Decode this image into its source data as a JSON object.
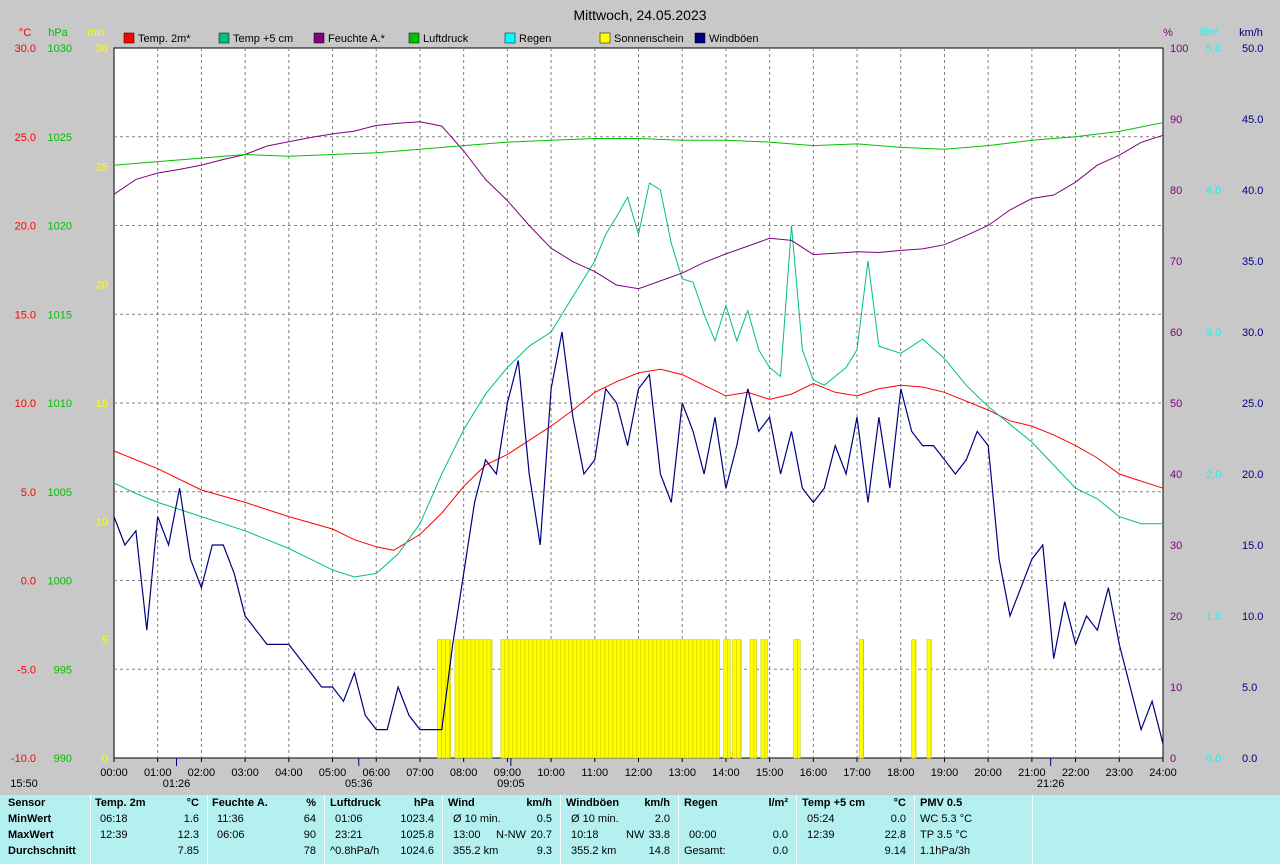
{
  "chart_data": {
    "type": "line",
    "title": "Mittwoch, 24.05.2023",
    "x_ticks": [
      "00:00",
      "01:00",
      "02:00",
      "03:00",
      "04:00",
      "05:00",
      "06:00",
      "07:00",
      "08:00",
      "09:00",
      "10:00",
      "11:00",
      "12:00",
      "13:00",
      "14:00",
      "15:00",
      "16:00",
      "17:00",
      "18:00",
      "19:00",
      "20:00",
      "21:00",
      "22:00",
      "23:00",
      "24:00"
    ],
    "axes": {
      "temp": {
        "unit": "°C",
        "min": -10,
        "max": 30,
        "ticks": [
          "30.0",
          "25.0",
          "20.0",
          "15.0",
          "10.0",
          "5.0",
          "0.0",
          "-5.0",
          "-10.0"
        ],
        "color": "#ff0000"
      },
      "pressure": {
        "unit": "hPa",
        "min": 990,
        "max": 1030,
        "ticks": [
          "1030",
          "1025",
          "1020",
          "1015",
          "1010",
          "1005",
          "1000",
          "995",
          "990"
        ],
        "color": "#00c000"
      },
      "sunshine": {
        "unit": "min",
        "min": 0,
        "max": 30,
        "ticks": [
          "30",
          "25",
          "20",
          "15",
          "10",
          "5",
          "0"
        ],
        "color": "#ffff00"
      },
      "humidity": {
        "unit": "%",
        "min": 0,
        "max": 100,
        "ticks": [
          "100",
          "90",
          "80",
          "70",
          "60",
          "50",
          "40",
          "30",
          "20",
          "10",
          "0"
        ],
        "color": "#800080"
      },
      "rain": {
        "unit": "l/m²",
        "min": 0,
        "max": 5,
        "ticks": [
          "5.0",
          "4.0",
          "3.0",
          "2.0",
          "1.0",
          "0.0"
        ],
        "color": "#00ffff"
      },
      "wind": {
        "unit": "km/h",
        "min": 0,
        "max": 50,
        "ticks": [
          "50.0",
          "45.0",
          "40.0",
          "35.0",
          "30.0",
          "25.0",
          "20.0",
          "15.0",
          "10.0",
          "5.0",
          "0.0"
        ],
        "color": "#000080"
      }
    },
    "legend": [
      {
        "name": "Temp. 2m*",
        "color": "#ff0000"
      },
      {
        "name": "Temp +5 cm",
        "color": "#00c080"
      },
      {
        "name": "Feuchte A.*",
        "color": "#800080"
      },
      {
        "name": "Luftdruck",
        "color": "#00c000"
      },
      {
        "name": "Regen",
        "color": "#00ffff"
      },
      {
        "name": "Sonnenschein",
        "color": "#ffff00"
      },
      {
        "name": "Windböen",
        "color": "#000080"
      }
    ],
    "series": [
      {
        "name": "Temp. 2m*",
        "axis": "temp",
        "color": "#ff0000",
        "x": [
          0,
          1,
          2,
          3,
          4,
          5,
          5.5,
          6,
          6.4,
          7,
          7.5,
          8,
          8.5,
          9,
          9.5,
          10,
          10.5,
          11,
          11.5,
          12,
          12.5,
          13,
          13.5,
          14,
          14.5,
          15,
          15.5,
          16,
          16.5,
          17,
          17.5,
          18,
          18.5,
          19,
          19.5,
          20,
          20.5,
          21,
          21.5,
          22,
          22.5,
          23,
          23.5,
          24
        ],
        "y": [
          7.3,
          6.3,
          5.1,
          4.4,
          3.6,
          2.9,
          2.3,
          1.9,
          1.7,
          2.6,
          3.8,
          5.3,
          6.5,
          7.1,
          7.9,
          8.7,
          9.6,
          10.6,
          11.2,
          11.7,
          11.9,
          11.6,
          11.0,
          10.4,
          10.6,
          10.2,
          10.5,
          11.1,
          10.6,
          10.4,
          10.8,
          11.0,
          10.9,
          10.6,
          10.1,
          9.6,
          9.0,
          8.7,
          8.2,
          7.6,
          6.9,
          6.0,
          5.6,
          5.2
        ]
      },
      {
        "name": "Temp +5 cm",
        "axis": "temp",
        "color": "#00c080",
        "x": [
          0,
          0.5,
          1,
          1.5,
          2,
          2.5,
          3,
          3.5,
          4,
          4.5,
          5,
          5.5,
          6,
          6.5,
          7,
          7.5,
          8,
          8.5,
          9,
          9.5,
          10,
          10.5,
          11,
          11.25,
          11.5,
          11.75,
          12,
          12.25,
          12.5,
          12.75,
          13,
          13.25,
          13.5,
          13.75,
          14,
          14.25,
          14.5,
          14.75,
          15,
          15.25,
          15.5,
          15.75,
          16,
          16.25,
          16.5,
          16.75,
          17,
          17.25,
          17.5,
          18,
          18.5,
          19,
          19.5,
          20,
          20.5,
          21,
          21.5,
          22,
          22.5,
          23,
          23.5,
          24
        ],
        "y": [
          5.5,
          4.9,
          4.4,
          4.0,
          3.6,
          3.2,
          2.8,
          2.3,
          1.8,
          1.2,
          0.6,
          0.2,
          0.4,
          1.5,
          3.2,
          6.0,
          8.5,
          10.5,
          12.0,
          13.2,
          14.0,
          16.0,
          18.0,
          19.5,
          20.5,
          21.6,
          19.5,
          22.4,
          22.0,
          19.0,
          17.0,
          16.8,
          15.0,
          13.5,
          15.5,
          13.5,
          15.2,
          13.0,
          12.0,
          11.5,
          20.0,
          13.0,
          11.3,
          11.0,
          11.5,
          12.0,
          13.0,
          18.0,
          13.2,
          12.8,
          13.6,
          12.5,
          11.0,
          9.8,
          8.8,
          7.8,
          6.5,
          5.2,
          4.6,
          3.6,
          3.2,
          3.2
        ]
      },
      {
        "name": "Feuchte A.*",
        "axis": "humidity",
        "color": "#800080",
        "x": [
          0,
          0.5,
          1,
          1.5,
          2,
          2.5,
          3,
          3.5,
          4,
          4.5,
          5,
          5.5,
          6,
          6.5,
          7,
          7.5,
          8,
          8.5,
          9,
          9.5,
          10,
          10.5,
          11,
          11.5,
          12,
          12.5,
          13,
          13.5,
          14,
          14.5,
          15,
          15.5,
          16,
          16.5,
          17,
          17.5,
          18,
          18.5,
          19,
          19.5,
          20,
          20.5,
          21,
          21.5,
          22,
          22.5,
          23,
          23.5,
          24
        ],
        "y": [
          79.4,
          81.5,
          82.4,
          82.9,
          83.5,
          84.3,
          85.0,
          86.2,
          86.8,
          87.4,
          87.9,
          88.3,
          89.1,
          89.4,
          89.6,
          89.0,
          85.5,
          81.5,
          78.5,
          75.0,
          71.8,
          69.9,
          68.5,
          66.6,
          66.1,
          67.2,
          68.3,
          69.8,
          71.0,
          72.1,
          73.2,
          72.9,
          70.9,
          71.1,
          71.3,
          71.2,
          71.5,
          71.7,
          72.3,
          73.6,
          75.0,
          77.2,
          78.8,
          79.3,
          81.1,
          83.5,
          84.9,
          86.7,
          87.7
        ]
      },
      {
        "name": "Luftdruck",
        "axis": "pressure",
        "color": "#00c000",
        "x": [
          0,
          1,
          2,
          3,
          4,
          5,
          6,
          7,
          8,
          9,
          10,
          11,
          12,
          13,
          14,
          15,
          16,
          17,
          18,
          19,
          20,
          21,
          22,
          23,
          24
        ],
        "y": [
          1023.4,
          1023.6,
          1023.8,
          1024.0,
          1023.9,
          1024.0,
          1024.1,
          1024.3,
          1024.5,
          1024.7,
          1024.8,
          1024.9,
          1024.9,
          1024.8,
          1024.8,
          1024.7,
          1024.5,
          1024.6,
          1024.4,
          1024.3,
          1024.5,
          1024.8,
          1025.0,
          1025.3,
          1025.8
        ]
      },
      {
        "name": "Windböen",
        "axis": "wind",
        "color": "#000080",
        "x": [
          0,
          0.25,
          0.5,
          0.75,
          1,
          1.25,
          1.5,
          1.75,
          2,
          2.25,
          2.5,
          2.75,
          3,
          3.25,
          3.5,
          3.75,
          4,
          4.25,
          4.5,
          4.75,
          5,
          5.25,
          5.5,
          5.75,
          6,
          6.25,
          6.5,
          6.75,
          7,
          7.25,
          7.5,
          7.75,
          8,
          8.25,
          8.5,
          8.75,
          9,
          9.25,
          9.5,
          9.75,
          10,
          10.25,
          10.5,
          10.75,
          11,
          11.25,
          11.5,
          11.75,
          12,
          12.25,
          12.5,
          12.75,
          13,
          13.25,
          13.5,
          13.75,
          14,
          14.25,
          14.5,
          14.75,
          15,
          15.25,
          15.5,
          15.75,
          16,
          16.25,
          16.5,
          16.75,
          17,
          17.25,
          17.5,
          17.75,
          18,
          18.25,
          18.5,
          18.75,
          19,
          19.25,
          19.5,
          19.75,
          20,
          20.25,
          20.5,
          20.75,
          21,
          21.25,
          21.5,
          21.75,
          22,
          22.25,
          22.5,
          22.75,
          23,
          23.25,
          23.5,
          23.75,
          24
        ],
        "y": [
          17,
          15,
          16,
          9,
          17,
          15,
          19,
          14,
          12,
          15,
          15,
          13,
          10,
          9,
          8,
          8,
          8,
          7,
          6,
          5,
          5,
          4,
          6,
          3,
          2,
          2,
          5,
          3,
          2,
          2,
          2,
          8,
          13,
          18,
          21,
          20,
          25,
          28,
          20,
          15,
          26,
          30,
          24,
          20,
          21,
          26,
          25,
          22,
          26,
          27,
          20,
          18,
          25,
          23,
          20,
          24,
          19,
          22,
          26,
          23,
          24,
          20,
          23,
          19,
          18,
          19,
          22,
          20,
          24,
          18,
          24,
          19,
          26,
          23,
          22,
          22,
          21,
          20,
          21,
          23,
          22,
          14,
          10,
          12,
          14,
          15,
          7,
          11,
          8,
          10,
          9,
          12,
          8,
          5,
          2,
          4,
          1
        ]
      }
    ],
    "sunshine_bars": {
      "axis": "sunshine",
      "value": 5,
      "color": "#ffff00",
      "intervals": [
        [
          7.4,
          7.7
        ],
        [
          7.8,
          8.65
        ],
        [
          8.85,
          13.85
        ],
        [
          13.95,
          14.1
        ],
        [
          14.15,
          14.35
        ],
        [
          14.55,
          14.7
        ],
        [
          14.8,
          14.95
        ],
        [
          15.55,
          15.7
        ],
        [
          17.05,
          17.15
        ],
        [
          18.25,
          18.35
        ],
        [
          18.6,
          18.7
        ]
      ]
    },
    "marker_labels": [
      {
        "text": "15:50",
        "x": 0
      },
      {
        "text": "01:26",
        "x": 1.43
      },
      {
        "text": "05:36",
        "x": 5.6
      },
      {
        "text": "09:05",
        "x": 9.08
      },
      {
        "text": "21:26",
        "x": 21.43
      }
    ]
  },
  "table": {
    "sensor": {
      "title": "Sensor",
      "rows": [
        "MinWert",
        "MaxWert",
        "Durchschnitt"
      ]
    },
    "temp2m": {
      "title": "Temp. 2m",
      "unit": "°C",
      "rows": [
        [
          "06:18",
          "1.6"
        ],
        [
          "12:39",
          "12.3"
        ],
        [
          "",
          "7.85"
        ]
      ]
    },
    "feuchte": {
      "title": "Feuchte A.",
      "unit": "%",
      "rows": [
        [
          "11:36",
          "64"
        ],
        [
          "06:06",
          "90"
        ],
        [
          "",
          "78"
        ]
      ]
    },
    "luftdruck": {
      "title": "Luftdruck",
      "unit": "hPa",
      "rows": [
        [
          "01:06",
          "1023.4"
        ],
        [
          "23:21",
          "1025.8"
        ],
        [
          "^0.8hPa/h",
          "1024.6"
        ]
      ]
    },
    "wind": {
      "title": "Wind",
      "unit": "km/h",
      "rows": [
        [
          "Ø 10 min.",
          "",
          "0.5"
        ],
        [
          "13:00",
          "N-NW",
          "20.7"
        ],
        [
          "355.2 km",
          "",
          "9.3"
        ]
      ]
    },
    "windboeen": {
      "title": "Windböen",
      "unit": "km/h",
      "rows": [
        [
          "Ø 10 min.",
          "",
          "2.0"
        ],
        [
          "10:18",
          "NW",
          "33.8"
        ],
        [
          "355.2 km",
          "",
          "14.8"
        ]
      ]
    },
    "regen": {
      "title": "Regen",
      "unit": "l/m²",
      "rows": [
        [
          "",
          ""
        ],
        [
          "00:00",
          "0.0"
        ],
        [
          "Gesamt:",
          "0.0"
        ]
      ]
    },
    "temp5cm": {
      "title": "Temp +5 cm",
      "unit": "°C",
      "rows": [
        [
          "05:24",
          "0.0"
        ],
        [
          "12:39",
          "22.8"
        ],
        [
          "",
          "9.14"
        ]
      ]
    },
    "pmv": {
      "title": "PMV 0.5",
      "rows": [
        "WC 5.3 °C",
        "TP 3.5 °C",
        "1.1hPa/3h"
      ]
    }
  }
}
